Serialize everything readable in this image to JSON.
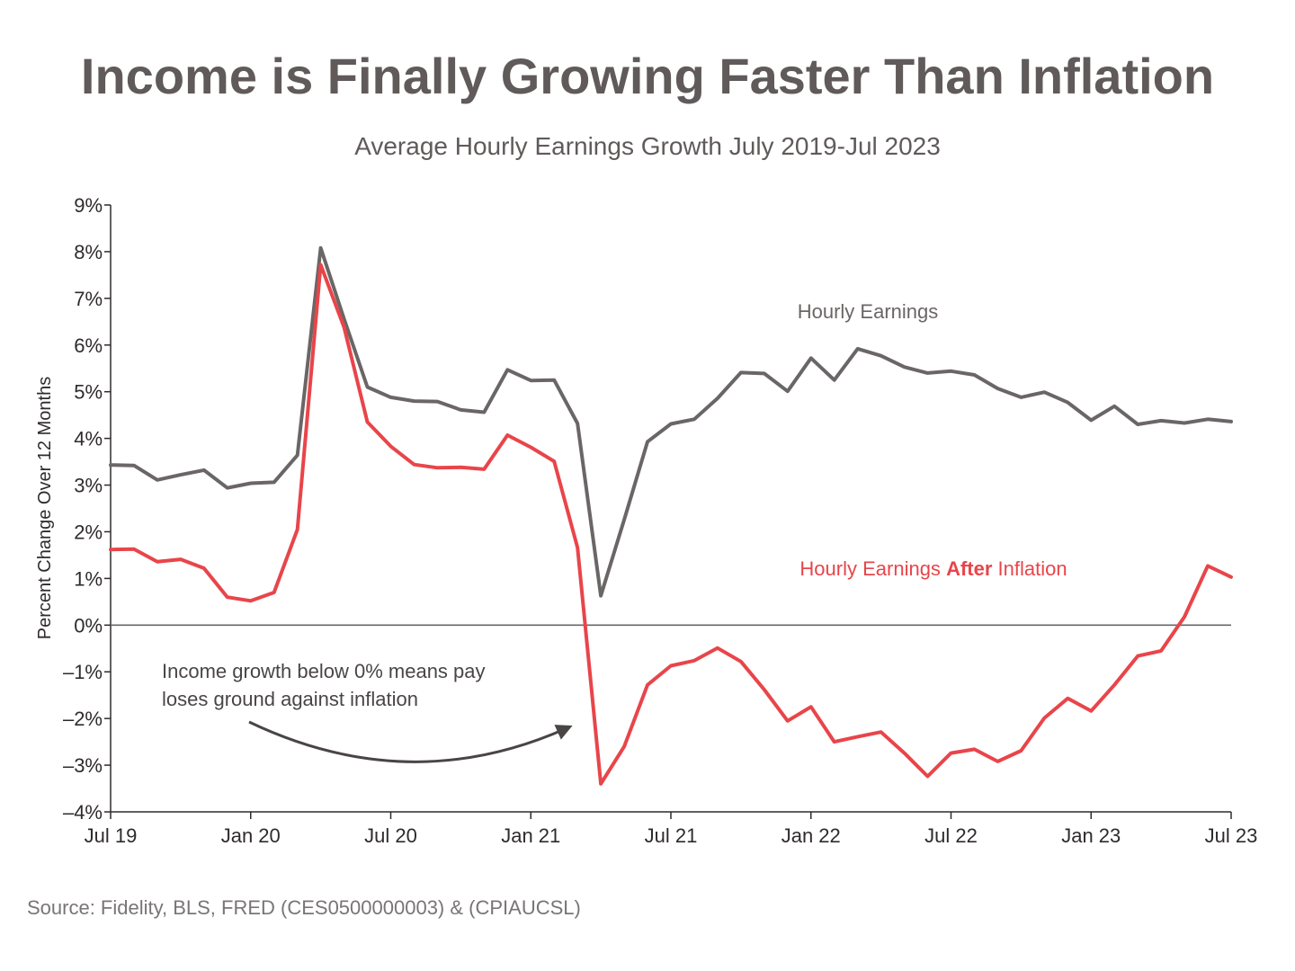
{
  "chart_data": {
    "type": "line",
    "title": "Income is Finally Growing Faster Than Inflation",
    "subtitle": "Average Hourly Earnings Growth July 2019-Jul 2023",
    "ylabel": "Percent Change Over 12 Months",
    "xlabel": "",
    "ylim": [
      -4,
      9
    ],
    "y_ticks": [
      -4,
      -3,
      -2,
      -1,
      0,
      1,
      2,
      3,
      4,
      5,
      6,
      7,
      8,
      9
    ],
    "y_tick_labels": [
      "–4%",
      "–3%",
      "–2%",
      "–1%",
      "0%",
      "1%",
      "2%",
      "3%",
      "4%",
      "5%",
      "6%",
      "7%",
      "8%",
      "9%"
    ],
    "x_tick_indices": [
      0,
      6,
      12,
      18,
      24,
      30,
      36,
      42,
      48
    ],
    "x_tick_labels": [
      "Jul 19",
      "Jan 20",
      "Jul 20",
      "Jan 21",
      "Jul 21",
      "Jan 22",
      "Jul 22",
      "Jan 23",
      "Jul 23"
    ],
    "x_count": 49,
    "series": [
      {
        "name": "Hourly Earnings",
        "label_prefix": "Hourly Earnings",
        "label_bold": "",
        "label_suffix": "",
        "color": "#6b6666",
        "values": [
          3.43,
          3.42,
          3.11,
          3.22,
          3.32,
          2.94,
          3.04,
          3.06,
          3.64,
          8.08,
          6.56,
          5.1,
          4.88,
          4.8,
          4.79,
          4.61,
          4.56,
          5.47,
          5.24,
          5.25,
          4.32,
          0.63,
          2.26,
          3.93,
          4.31,
          4.41,
          4.86,
          5.41,
          5.39,
          5.01,
          5.72,
          5.25,
          5.92,
          5.77,
          5.53,
          5.4,
          5.44,
          5.36,
          5.07,
          4.88,
          4.99,
          4.77,
          4.39,
          4.69,
          4.3,
          4.38,
          4.33,
          4.41,
          4.36
        ]
      },
      {
        "name": "Hourly Earnings After Inflation",
        "label_prefix": "Hourly Earnings ",
        "label_bold": "After",
        "label_suffix": " Inflation",
        "color": "#e8454a",
        "values": [
          1.62,
          1.63,
          1.36,
          1.41,
          1.22,
          0.6,
          0.52,
          0.7,
          2.05,
          7.72,
          6.38,
          4.35,
          3.83,
          3.44,
          3.37,
          3.38,
          3.34,
          4.07,
          3.81,
          3.51,
          1.66,
          -3.4,
          -2.6,
          -1.28,
          -0.87,
          -0.76,
          -0.49,
          -0.78,
          -1.38,
          -2.05,
          -1.75,
          -2.5,
          -2.39,
          -2.29,
          -2.74,
          -3.24,
          -2.74,
          -2.66,
          -2.92,
          -2.69,
          -1.99,
          -1.57,
          -1.84,
          -1.28,
          -0.66,
          -0.55,
          0.18,
          1.27,
          1.03
        ]
      }
    ],
    "annotation": {
      "lines": [
        "Income growth below 0% means pay",
        "loses ground against inflation"
      ]
    },
    "source": "Source: Fidelity, BLS, FRED (CES0500000003) & (CPIAUCSL)"
  }
}
